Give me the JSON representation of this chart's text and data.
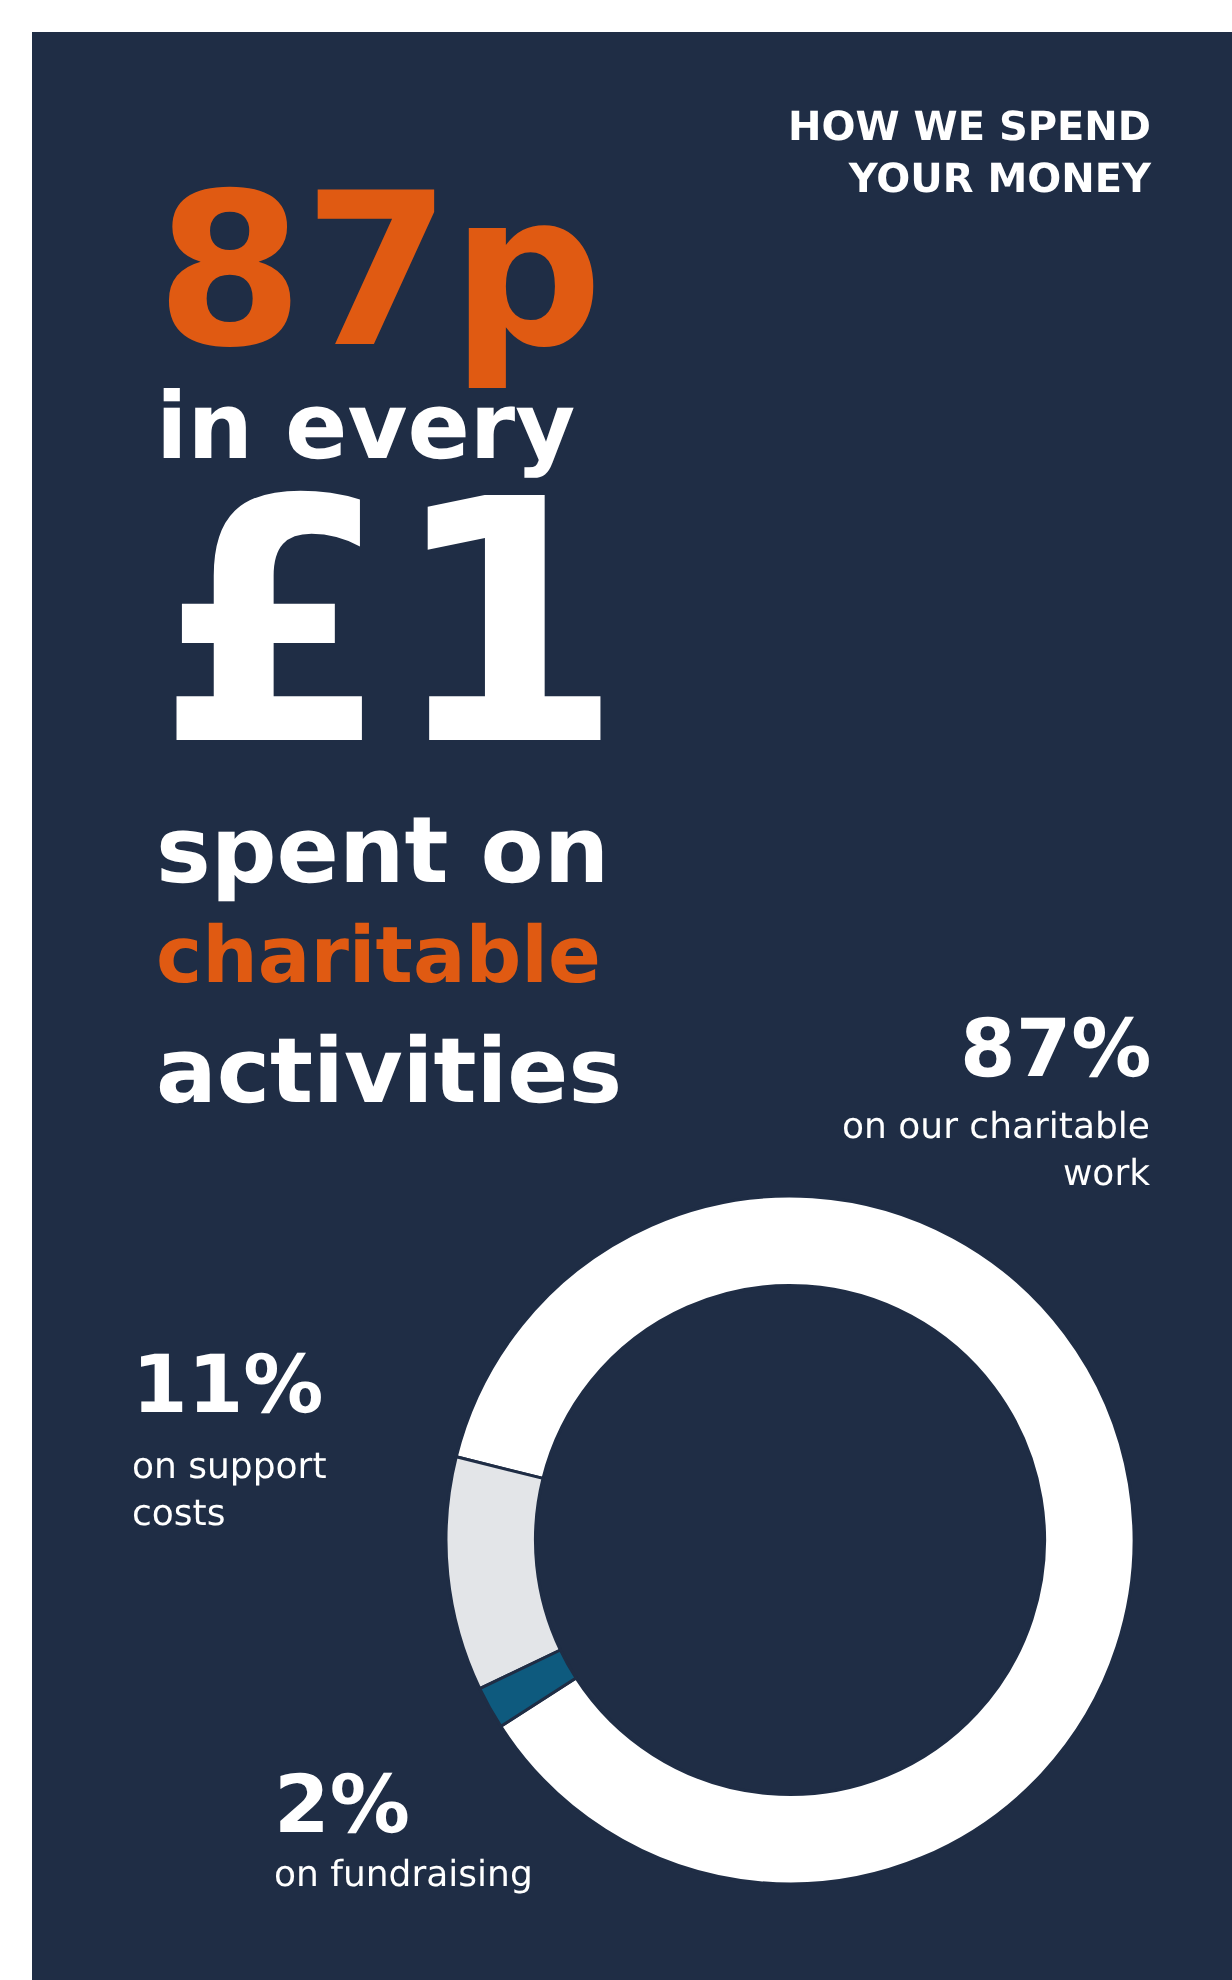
{
  "chart_data": {
    "type": "donut",
    "title": "HOW WE SPEND YOUR MONEY",
    "annotations": [
      "87p",
      "in every",
      "£1",
      "spent on",
      "charitable",
      "activities"
    ],
    "categories": [
      "on our charitable work",
      "on support costs",
      "on fundraising"
    ],
    "values": [
      87,
      11,
      2
    ],
    "value_labels": [
      "87%",
      "11%",
      "2%"
    ],
    "colors": [
      "#ffffff",
      "#e3e5e8",
      "#0e5a7e"
    ],
    "legend": false
  }
}
